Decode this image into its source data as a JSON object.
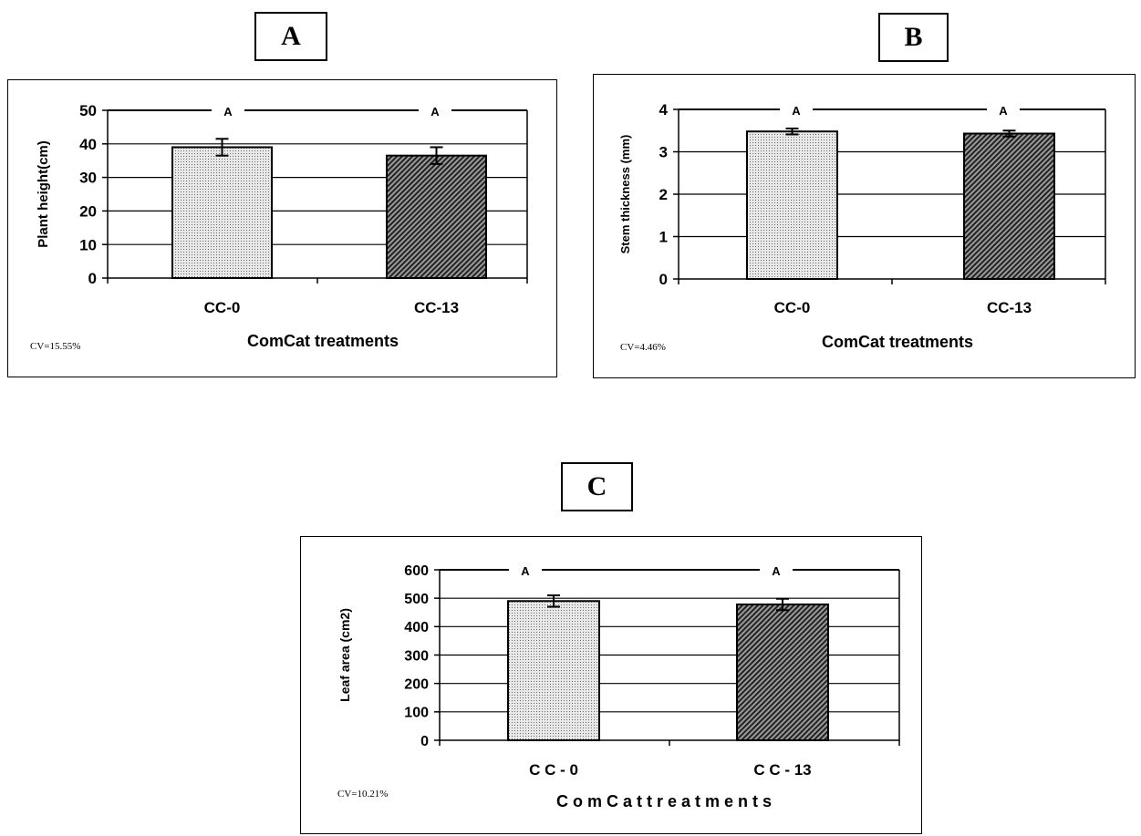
{
  "chart_data": [
    {
      "panel": "A",
      "type": "bar",
      "categories": [
        "CC-0",
        "CC-13"
      ],
      "values": [
        39,
        36.5
      ],
      "errors": [
        2.5,
        2.5
      ],
      "significance": [
        "A",
        "A"
      ],
      "xlabel": "ComCat treatments",
      "ylabel": "Plant height(cm)",
      "ylim": [
        0,
        50
      ],
      "yticks": [
        0,
        10,
        20,
        30,
        40,
        50
      ],
      "cv": "CV=15.55%",
      "grid": true
    },
    {
      "panel": "B",
      "type": "bar",
      "categories": [
        "CC-0",
        "CC-13"
      ],
      "values": [
        3.48,
        3.43
      ],
      "errors": [
        0.07,
        0.07
      ],
      "significance": [
        "A",
        "A"
      ],
      "xlabel": "ComCat treatments",
      "ylabel": "Stem thickness (mm)",
      "ylim": [
        0,
        4
      ],
      "yticks": [
        0,
        1,
        2,
        3,
        4
      ],
      "cv": "CV=4.46%",
      "grid": true
    },
    {
      "panel": "C",
      "type": "bar",
      "categories": [
        "C C - 0",
        "C C - 13"
      ],
      "values": [
        490,
        478
      ],
      "errors": [
        20,
        20
      ],
      "significance": [
        "A",
        "A"
      ],
      "xlabel": "C o m C a t  t r e a t m e n t s",
      "ylabel": "Leaf area (cm2)",
      "ylim": [
        0,
        600
      ],
      "yticks": [
        0,
        100,
        200,
        300,
        400,
        500,
        600
      ],
      "cv": "CV=10.21%",
      "grid": true
    }
  ],
  "colors": {
    "bar_light": "#d6d6d6",
    "bar_dark": "#555555",
    "axis": "#000000"
  }
}
